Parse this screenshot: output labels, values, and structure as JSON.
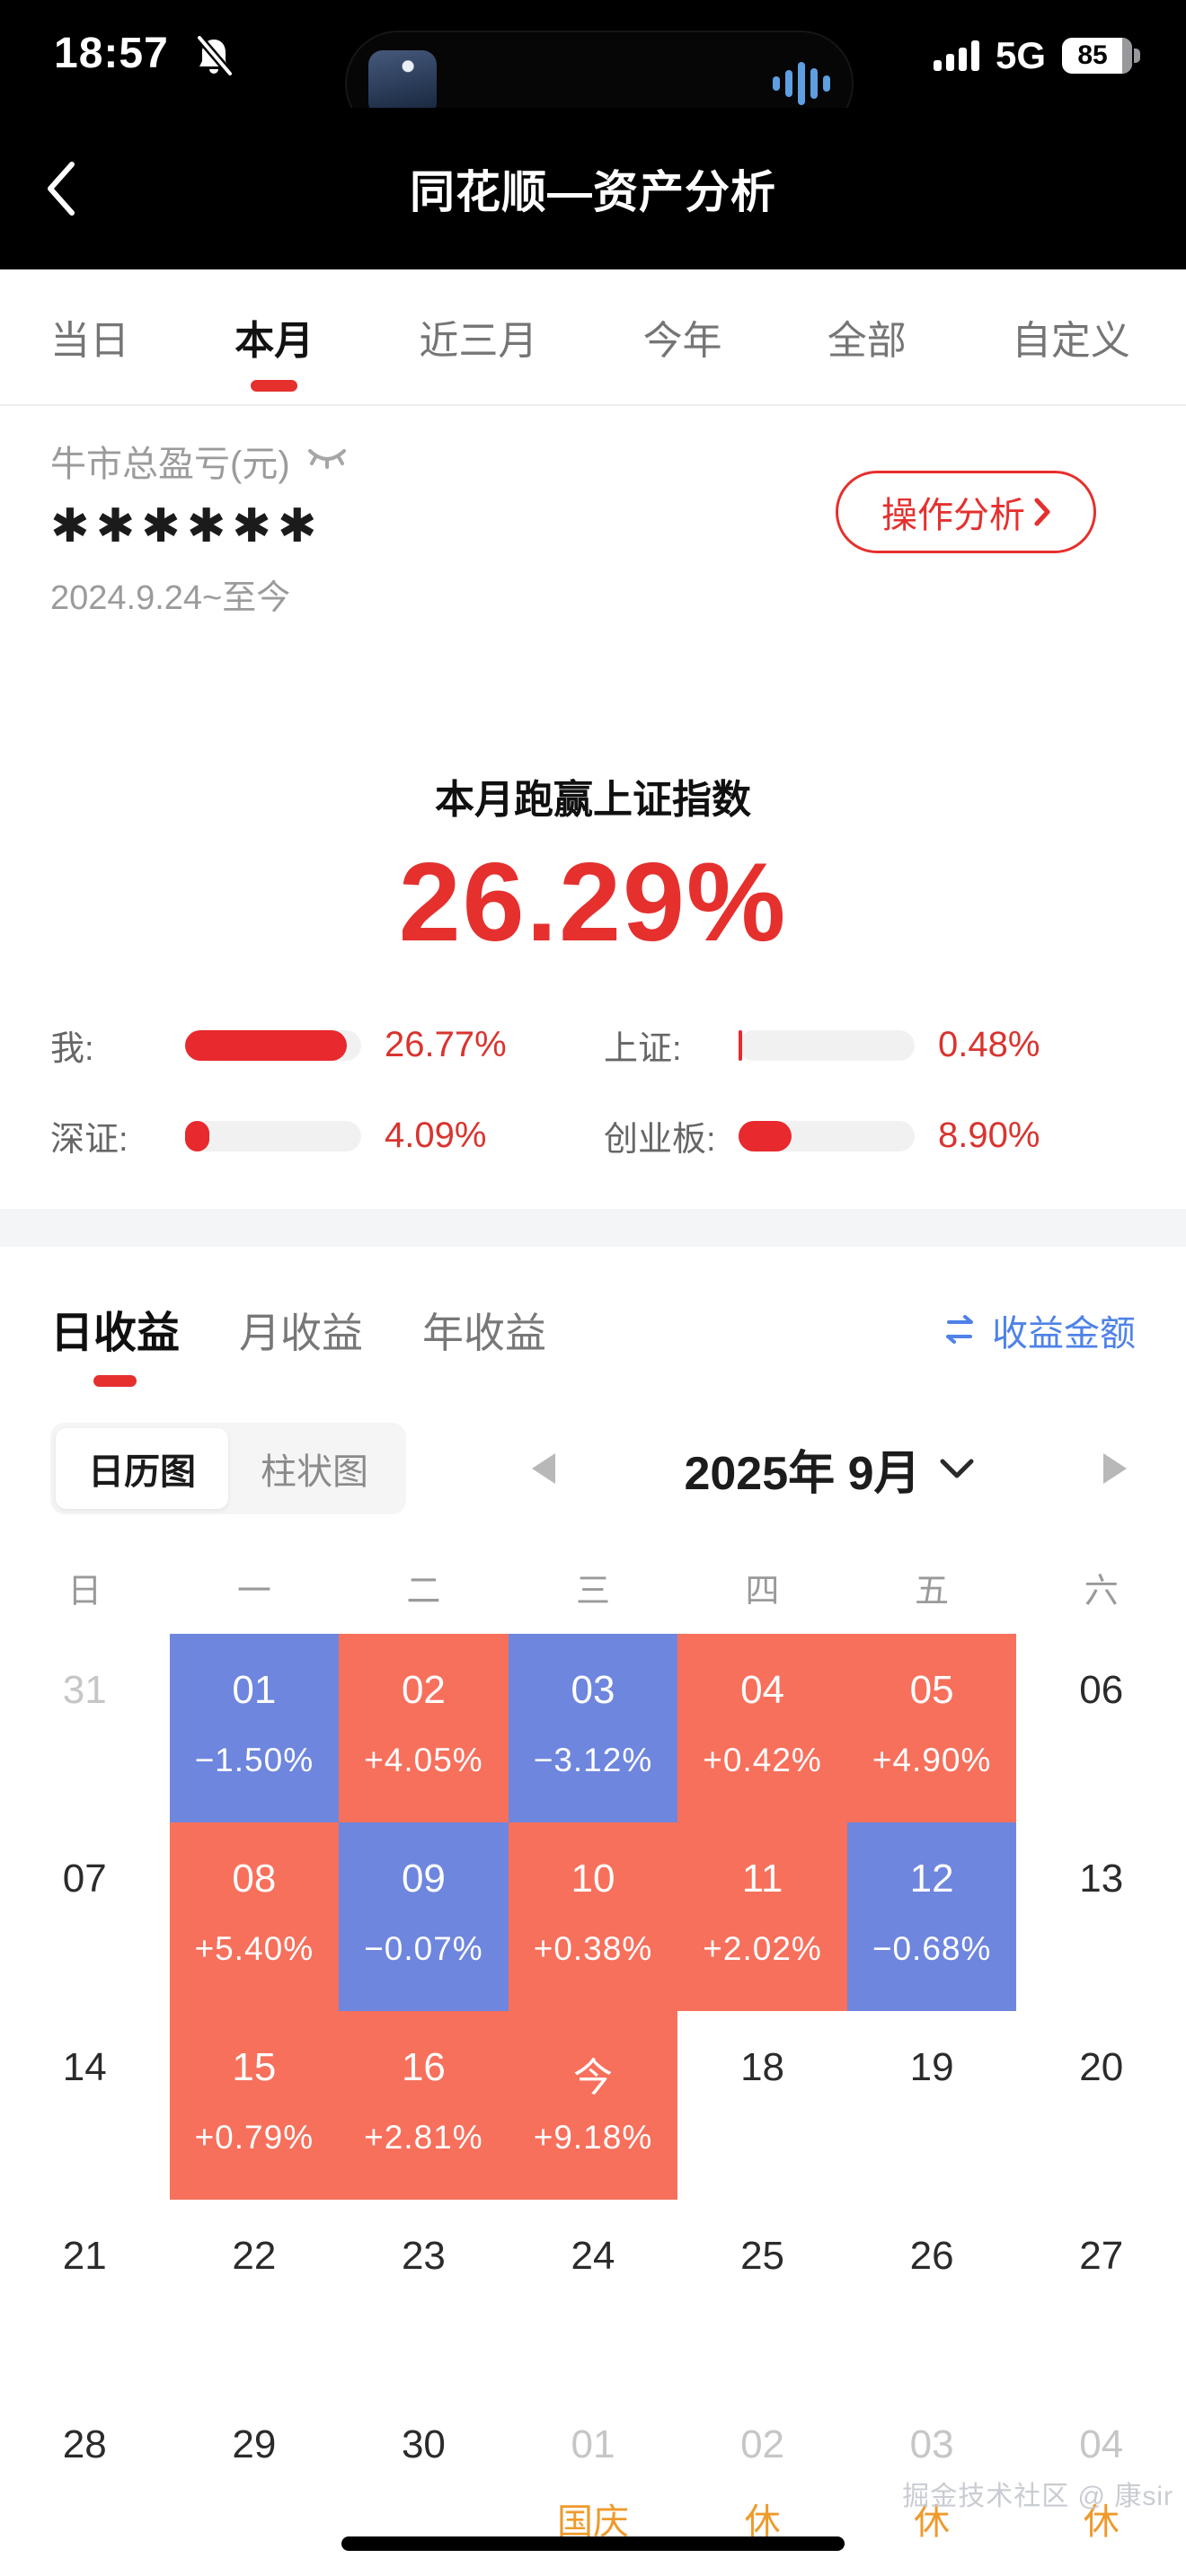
{
  "status_bar": {
    "time": "18:57",
    "network": "5G",
    "battery": "85"
  },
  "nav": {
    "title": "同花顺—资产分析"
  },
  "period_tabs": {
    "items": [
      {
        "label": "当日",
        "name": "tab-today",
        "active": false
      },
      {
        "label": "本月",
        "name": "tab-this-month",
        "active": true
      },
      {
        "label": "近三月",
        "name": "tab-3-months",
        "active": false
      },
      {
        "label": "今年",
        "name": "tab-this-year",
        "active": false
      },
      {
        "label": "全部",
        "name": "tab-all",
        "active": false
      },
      {
        "label": "自定义",
        "name": "tab-custom",
        "active": false
      }
    ]
  },
  "profit": {
    "label": "牛市总盈亏(元)",
    "masked_value": "✱✱✱✱✱✱",
    "date_range": "2024.9.24~至今",
    "action_label": "操作分析"
  },
  "outperform": {
    "title": "本月跑赢上证指数",
    "value": "26.29%"
  },
  "comparison": {
    "items": [
      {
        "label": "我:",
        "name": "bar-me",
        "value": "26.77%",
        "fill_pct": 92
      },
      {
        "label": "上证:",
        "name": "bar-shanghai",
        "value": "0.48%",
        "fill_pct": 2
      },
      {
        "label": "深证:",
        "name": "bar-shenzhen",
        "value": "4.09%",
        "fill_pct": 14
      },
      {
        "label": "创业板:",
        "name": "bar-chinext",
        "value": "8.90%",
        "fill_pct": 30
      }
    ]
  },
  "earnings": {
    "tabs": [
      {
        "label": "日收益",
        "name": "tab-daily-earnings",
        "active": true
      },
      {
        "label": "月收益",
        "name": "tab-monthly-earnings",
        "active": false
      },
      {
        "label": "年收益",
        "name": "tab-yearly-earnings",
        "active": false
      }
    ],
    "toggle_label": "收益金额",
    "view_tabs": [
      {
        "label": "日历图",
        "name": "view-calendar-chart",
        "active": true
      },
      {
        "label": "柱状图",
        "name": "view-bar-chart",
        "active": false
      }
    ],
    "month_label": "2025年 9月"
  },
  "calendar": {
    "weekdays": [
      "日",
      "一",
      "二",
      "三",
      "四",
      "五",
      "六"
    ],
    "cells": [
      {
        "day": "31",
        "type": "out"
      },
      {
        "day": "01",
        "type": "neg",
        "pct": "−1.50%"
      },
      {
        "day": "02",
        "type": "pos",
        "pct": "+4.05%"
      },
      {
        "day": "03",
        "type": "neg",
        "pct": "−3.12%"
      },
      {
        "day": "04",
        "type": "pos",
        "pct": "+0.42%"
      },
      {
        "day": "05",
        "type": "pos",
        "pct": "+4.90%"
      },
      {
        "day": "06",
        "type": "plain"
      },
      {
        "day": "07",
        "type": "plain"
      },
      {
        "day": "08",
        "type": "pos",
        "pct": "+5.40%"
      },
      {
        "day": "09",
        "type": "neg",
        "pct": "−0.07%"
      },
      {
        "day": "10",
        "type": "pos",
        "pct": "+0.38%"
      },
      {
        "day": "11",
        "type": "pos",
        "pct": "+2.02%"
      },
      {
        "day": "12",
        "type": "neg",
        "pct": "−0.68%"
      },
      {
        "day": "13",
        "type": "plain"
      },
      {
        "day": "14",
        "type": "plain"
      },
      {
        "day": "15",
        "type": "pos",
        "pct": "+0.79%"
      },
      {
        "day": "16",
        "type": "pos",
        "pct": "+2.81%"
      },
      {
        "day": "今",
        "type": "pos",
        "pct": "+9.18%",
        "today": true
      },
      {
        "day": "18",
        "type": "plain"
      },
      {
        "day": "19",
        "type": "plain"
      },
      {
        "day": "20",
        "type": "plain"
      },
      {
        "day": "21",
        "type": "plain"
      },
      {
        "day": "22",
        "type": "plain"
      },
      {
        "day": "23",
        "type": "plain"
      },
      {
        "day": "24",
        "type": "plain"
      },
      {
        "day": "25",
        "type": "plain"
      },
      {
        "day": "26",
        "type": "plain"
      },
      {
        "day": "27",
        "type": "plain"
      },
      {
        "day": "28",
        "type": "plain"
      },
      {
        "day": "29",
        "type": "plain"
      },
      {
        "day": "30",
        "type": "plain"
      },
      {
        "day": "01",
        "type": "out",
        "holiday": "国庆"
      },
      {
        "day": "02",
        "type": "out",
        "holiday": "休"
      },
      {
        "day": "03",
        "type": "out",
        "holiday": "休"
      },
      {
        "day": "04",
        "type": "out",
        "holiday": "休"
      }
    ]
  },
  "watermark": "掘金技术社区 @ 康sir",
  "colors": {
    "accent_red": "#e5302e",
    "calendar_positive": "#f7705c",
    "calendar_negative": "#6e86de",
    "link_blue": "#4e82e8",
    "holiday_orange": "#ef9a2b"
  }
}
